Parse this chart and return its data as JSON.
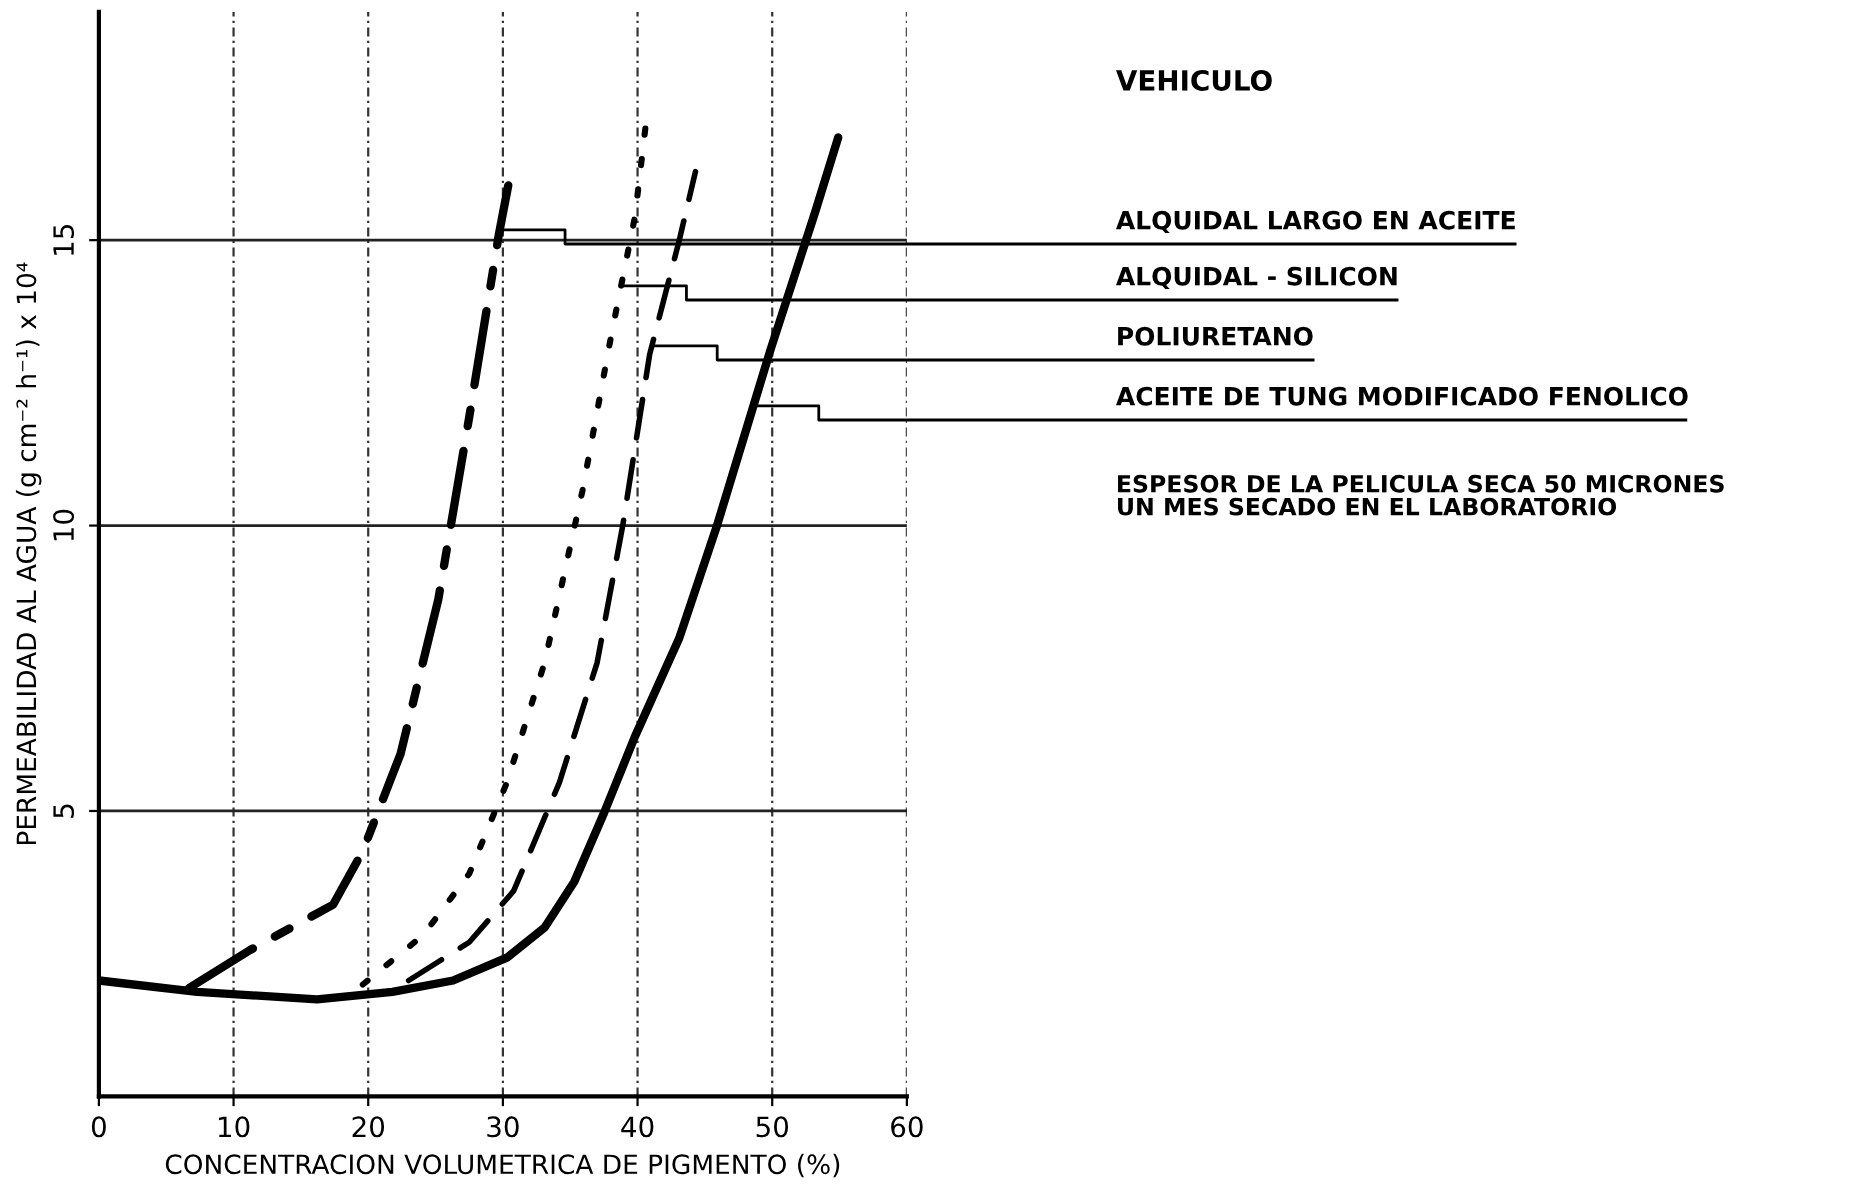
{
  "chart_data": {
    "type": "line",
    "xlabel": "CONCENTRACION VOLUMETRICA DE PIGMENTO (%)",
    "ylabel": "PERMEABILIDAD AL AGUA (g cm⁻² h⁻¹) x 10⁴",
    "legend_title": "VEHICULO",
    "annotations": [
      "ESPESOR DE LA PELICULA SECA 50 MICRONES\nUN MES SECADO EN EL LABORATORIO"
    ],
    "xlim": [
      0,
      60
    ],
    "ylim": [
      0,
      19
    ],
    "xticks": [
      0,
      10,
      20,
      30,
      40,
      50,
      60
    ],
    "yticks": [
      5,
      10,
      15
    ],
    "grid": true,
    "legend": "right",
    "series": [
      {
        "name": "ALQUIDAL LARGO EN ACEITE",
        "color": "#000000",
        "line_style": "dashdot",
        "x": [
          6.7,
          11.2,
          17.4,
          19.6,
          22.4,
          25.2,
          27.5,
          29.7,
          30.4
        ],
        "values": [
          1.9,
          2.56,
          3.36,
          4.3,
          6.0,
          8.7,
          11.9,
          15.1,
          15.96
        ]
      },
      {
        "name": "ALQUIDAL - SILICON",
        "color": "#000000",
        "line_style": "dotted",
        "x": [
          19.6,
          24.1,
          27.5,
          30.3,
          33.1,
          35.9,
          38.1,
          39.8,
          40.6
        ],
        "values": [
          1.96,
          2.83,
          3.9,
          5.5,
          7.6,
          10.6,
          13.4,
          15.4,
          17.0
        ]
      },
      {
        "name": "POLIURETANO",
        "color": "#000000",
        "line_style": "dashed",
        "x": [
          23.0,
          27.5,
          30.8,
          34.2,
          37.0,
          38.9,
          40.9,
          43.1,
          44.3
        ],
        "values": [
          2.03,
          2.7,
          3.6,
          5.5,
          7.6,
          10.0,
          13.0,
          15.0,
          16.2
        ]
      },
      {
        "name": "ACEITE DE TUNG MODIFICADO FENOLICO",
        "color": "#000000",
        "line_style": "solid",
        "x": [
          0,
          7.3,
          16.2,
          21.8,
          26.3,
          30.3,
          33.1,
          35.3,
          37.5,
          39.8,
          43.1,
          45.9,
          49.9,
          53.2,
          54.9
        ],
        "values": [
          2.03,
          1.83,
          1.7,
          1.83,
          2.03,
          2.43,
          2.96,
          3.76,
          4.96,
          6.3,
          8.03,
          10.0,
          13.1,
          15.5,
          16.8
        ]
      }
    ]
  }
}
